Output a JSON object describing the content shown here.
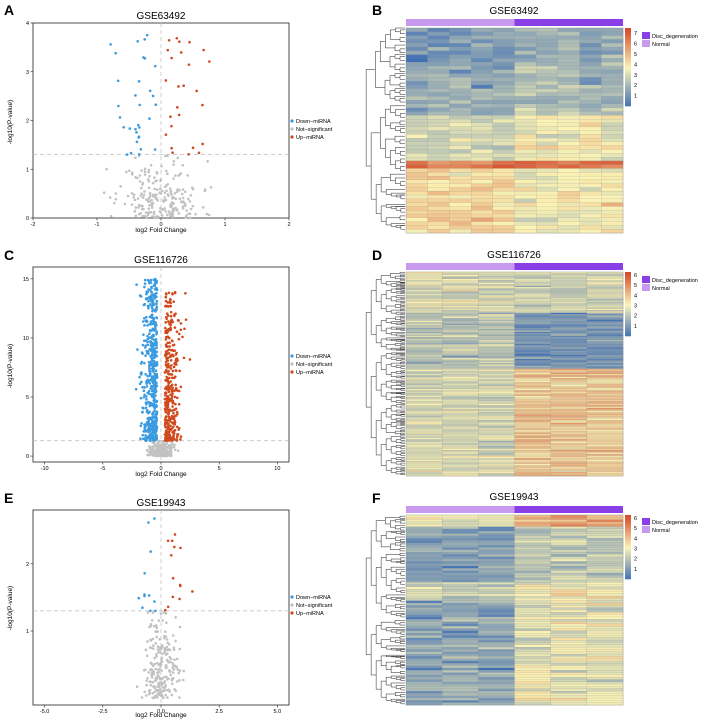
{
  "colors": {
    "down": "#3a9be0",
    "ns": "#c2c2c2",
    "up": "#d04a1e",
    "disc": "#8a3ee6",
    "normal": "#c79af0",
    "heat_low": "#3f6fb6",
    "heat_mid": "#fbf3b4",
    "heat_high": "#d44a2a"
  },
  "chart_data": [
    {
      "type": "scatter",
      "panel": "A",
      "title": "GSE63492",
      "xlabel": "log2 Fold Change",
      "ylabel": "-log10(P-value)",
      "xlim": [
        -2,
        2
      ],
      "ylim": [
        0,
        4
      ],
      "xticks": [
        "-2",
        "-1",
        "0",
        "1",
        "2"
      ],
      "yticks": [
        "0",
        "1",
        "2",
        "3",
        "4"
      ],
      "threshold_y": 1.3,
      "legend": [
        "Down−miRNA",
        "Not−significant",
        "Up−miRNA"
      ],
      "seed": 11,
      "n_ns": 220,
      "n_down": 32,
      "n_up": 26,
      "xspread": 0.35,
      "ymax_sig": 3.9
    },
    {
      "type": "heatmap",
      "panel": "B",
      "title": "GSE63492",
      "legend": [
        "Disc_degeneration",
        "Normal"
      ],
      "scale_ticks": [
        "1",
        "2",
        "3",
        "4",
        "5",
        "6",
        "7"
      ],
      "scale_range": [
        0,
        7.5
      ],
      "groups": [
        {
          "name": "Normal",
          "cols": 5
        },
        {
          "name": "Disc_degeneration",
          "cols": 5
        }
      ],
      "rows": 54,
      "seed": 21
    },
    {
      "type": "scatter",
      "panel": "C",
      "title": "GSE116726",
      "xlabel": "log2 Fold Change",
      "ylabel": "-log10(P-value)",
      "xlim": [
        -11,
        11
      ],
      "ylim": [
        -0.5,
        16
      ],
      "xticks": [
        "-10",
        "-5",
        "0",
        "5",
        "10"
      ],
      "yticks": [
        "0",
        "5",
        "10",
        "15"
      ],
      "threshold_y": 1.3,
      "legend": [
        "Down−miRNA",
        "Not−significant",
        "Up−miRNA"
      ],
      "seed": 31,
      "n_ns": 260,
      "n_down": 520,
      "n_up": 360,
      "xspread": 0.6,
      "ymax_sig": 15
    },
    {
      "type": "heatmap",
      "panel": "D",
      "title": "GSE116726",
      "legend": [
        "Disc_degeneration",
        "Normal"
      ],
      "scale_ticks": [
        "1",
        "2",
        "3",
        "4",
        "5",
        "6"
      ],
      "scale_range": [
        0,
        6.3
      ],
      "groups": [
        {
          "name": "Normal",
          "cols": 3
        },
        {
          "name": "Disc_degeneration",
          "cols": 3
        }
      ],
      "rows": 150,
      "seed": 41
    },
    {
      "type": "scatter",
      "panel": "E",
      "title": "GSE19943",
      "xlabel": "log2 Fold Change",
      "ylabel": "-log10(P-value)",
      "xlim": [
        -5.5,
        5.5
      ],
      "ylim": [
        -0.1,
        2.8
      ],
      "xticks": [
        "-5.0",
        "-2.5",
        "0.0",
        "2.5",
        "5.0"
      ],
      "yticks": [
        "1",
        "2"
      ],
      "threshold_y": 1.3,
      "legend": [
        "Down−miRNA",
        "Not−significant",
        "Up−miRNA"
      ],
      "seed": 51,
      "n_ns": 230,
      "n_down": 12,
      "n_up": 14,
      "xspread": 0.45,
      "ymax_sig": 2.7
    },
    {
      "type": "heatmap",
      "panel": "F",
      "title": "GSE19943",
      "legend": [
        "Disc_degeneration",
        "Normal"
      ],
      "scale_ticks": [
        "1",
        "2",
        "3",
        "4",
        "5",
        "6"
      ],
      "scale_range": [
        0,
        6.3
      ],
      "groups": [
        {
          "name": "Normal",
          "cols": 3
        },
        {
          "name": "Disc_degeneration",
          "cols": 3
        }
      ],
      "rows": 82,
      "seed": 61
    }
  ]
}
